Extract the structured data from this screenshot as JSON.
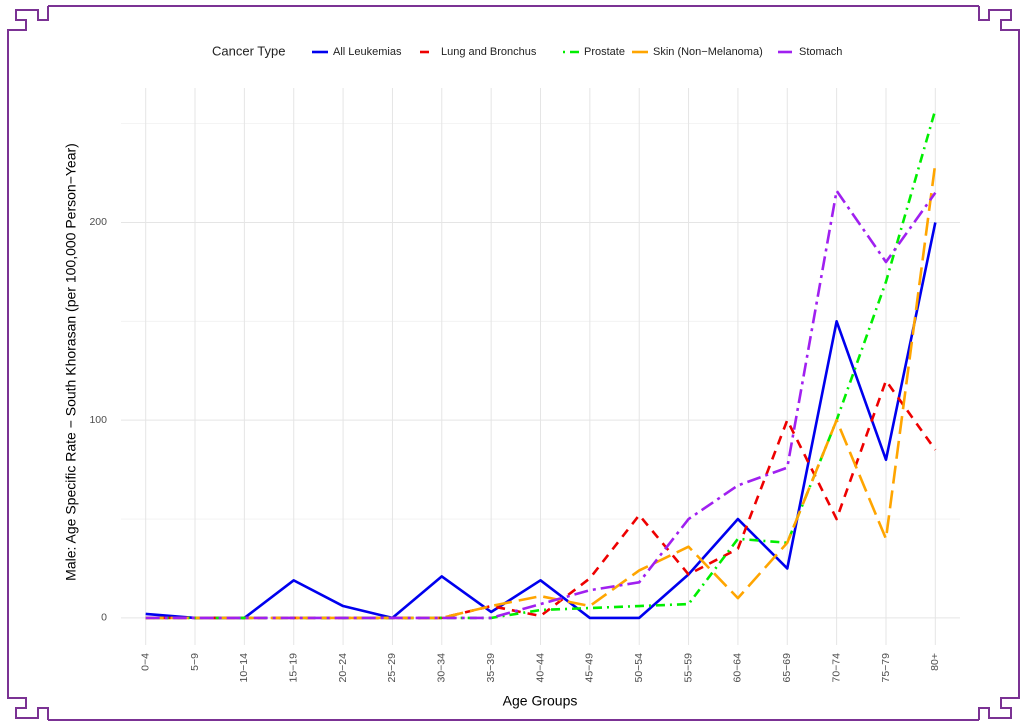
{
  "chart_data": {
    "type": "line",
    "legend_title": "Cancer Type",
    "x_label": "Age Groups",
    "y_label": "Male: Age Specific Rate − South Khorasan (per 100,000 Person−Year)",
    "categories": [
      "0−4",
      "5−9",
      "10−14",
      "15−19",
      "20−24",
      "25−29",
      "30−34",
      "35−39",
      "40−44",
      "45−49",
      "50−54",
      "55−59",
      "60−64",
      "65−69",
      "70−74",
      "75−79",
      "80+"
    ],
    "series": [
      {
        "name": "All Leukemias",
        "color": "#0000ee",
        "dash": "none",
        "values": [
          2,
          0,
          0,
          19,
          6,
          0,
          21,
          3,
          19,
          0,
          0,
          22,
          50,
          25,
          150,
          80,
          200
        ]
      },
      {
        "name": "Lung and Bronchus",
        "color": "#ee0000",
        "dash": "9,7",
        "values": [
          0,
          0,
          0,
          0,
          0,
          0,
          0,
          6,
          1,
          20,
          52,
          22,
          35,
          100,
          50,
          120,
          85
        ]
      },
      {
        "name": "Prostate",
        "color": "#00ee00",
        "dash": "2,5,9,5",
        "values": [
          0,
          0,
          0,
          0,
          0,
          0,
          0,
          0,
          4,
          5,
          6,
          7,
          40,
          38,
          100,
          170,
          257
        ]
      },
      {
        "name": "Skin (Non−Melanoma)",
        "color": "#ffa500",
        "dash": "18,7",
        "values": [
          0,
          0,
          0,
          0,
          0,
          0,
          0,
          6,
          11,
          6,
          24,
          36,
          10,
          38,
          100,
          40,
          230
        ]
      },
      {
        "name": "Stomach",
        "color": "#a020f0",
        "dash": "14,5,3,5",
        "values": [
          0,
          0,
          0,
          0,
          0,
          0,
          0,
          0,
          7,
          14,
          18,
          50,
          67,
          76,
          216,
          180,
          215
        ]
      }
    ],
    "ylim": [
      -13.7,
      268
    ],
    "yticks": [
      0,
      100,
      200
    ],
    "y_minor_grid": [
      50,
      150,
      250
    ],
    "grid": true,
    "legend_position": "top"
  }
}
